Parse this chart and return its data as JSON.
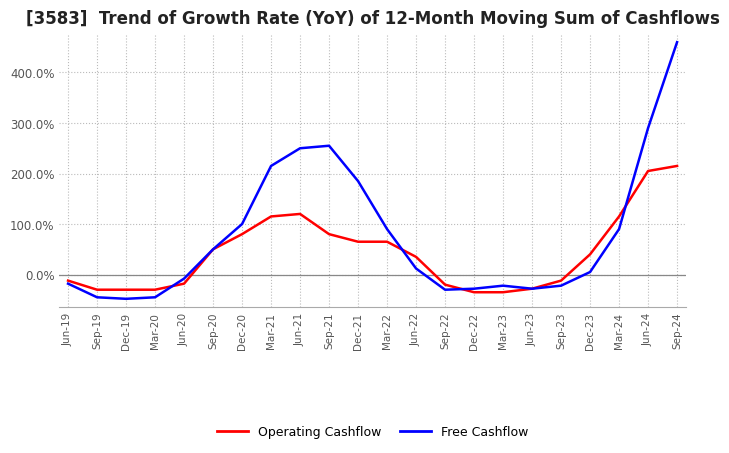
{
  "title": "[3583]  Trend of Growth Rate (YoY) of 12-Month Moving Sum of Cashflows",
  "title_fontsize": 12,
  "legend": [
    "Operating Cashflow",
    "Free Cashflow"
  ],
  "legend_colors": [
    "#ff0000",
    "#0000ff"
  ],
  "x_labels": [
    "Jun-19",
    "Sep-19",
    "Dec-19",
    "Mar-20",
    "Jun-20",
    "Sep-20",
    "Dec-20",
    "Mar-21",
    "Jun-21",
    "Sep-21",
    "Dec-21",
    "Mar-22",
    "Jun-22",
    "Sep-22",
    "Dec-22",
    "Mar-23",
    "Jun-23",
    "Sep-23",
    "Dec-23",
    "Mar-24",
    "Jun-24",
    "Sep-24"
  ],
  "operating_cashflow": [
    -12,
    -30,
    -30,
    -30,
    -18,
    50,
    80,
    115,
    120,
    80,
    65,
    65,
    35,
    -20,
    -35,
    -35,
    -28,
    -12,
    40,
    115,
    205,
    215
  ],
  "free_cashflow": [
    -18,
    -45,
    -48,
    -45,
    -8,
    50,
    100,
    215,
    250,
    255,
    185,
    90,
    12,
    -30,
    -28,
    -22,
    -28,
    -22,
    5,
    90,
    290,
    460
  ],
  "ylim": [
    -65,
    475
  ],
  "yticks": [
    0,
    100,
    200,
    300,
    400
  ],
  "background_color": "#ffffff",
  "grid_color": "#bbbbbb",
  "line_width": 1.8
}
